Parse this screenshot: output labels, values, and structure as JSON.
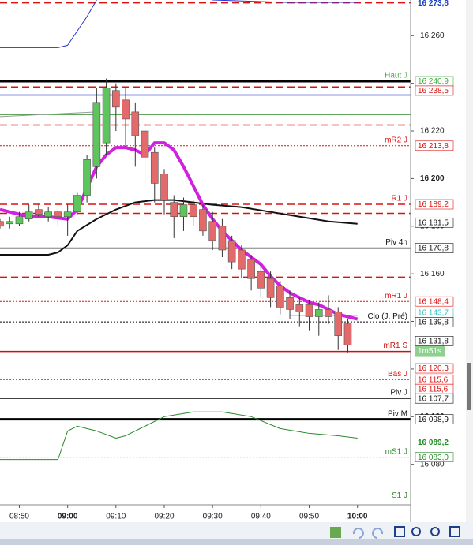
{
  "chart_data": {
    "type": "candlestick",
    "xlim": [
      "08:46",
      "10:11"
    ],
    "ylim": [
      16063,
      16275
    ],
    "xticks": [
      "08:50",
      "09:00",
      "09:10",
      "09:20",
      "09:30",
      "09:40",
      "09:50",
      "10:00"
    ],
    "yticks": [
      {
        "value": 16080,
        "label": "16 080"
      },
      {
        "value": 16100,
        "label": "16 100"
      },
      {
        "value": 16120,
        "label": "16 120"
      },
      {
        "value": 16140,
        "label": "16 140"
      },
      {
        "value": 16160,
        "label": "16 160"
      },
      {
        "value": 16180,
        "label": "16 180"
      },
      {
        "value": 16200,
        "label": "16 200"
      },
      {
        "value": 16220,
        "label": "16 220"
      },
      {
        "value": 16240,
        "label": "16 240"
      },
      {
        "value": 16260,
        "label": "16 260"
      }
    ],
    "up_color": "#5ec45e",
    "down_color": "#e26a6a",
    "candles": {
      "x": [
        "08:46",
        "08:48",
        "08:50",
        "08:52",
        "08:54",
        "08:56",
        "08:58",
        "09:00",
        "09:02",
        "09:04",
        "09:06",
        "09:08",
        "09:10",
        "09:12",
        "09:14",
        "09:16",
        "09:18",
        "09:20",
        "09:22",
        "09:24",
        "09:26",
        "09:28",
        "09:30",
        "09:32",
        "09:34",
        "09:36",
        "09:38",
        "09:40",
        "09:42",
        "09:44",
        "09:46",
        "09:48",
        "09:50",
        "09:52",
        "09:54",
        "09:56",
        "09:58"
      ],
      "open": [
        16182,
        16181,
        16181,
        16183,
        16187,
        16184,
        16186,
        16184,
        16186,
        16193,
        16205,
        16215,
        16237,
        16233,
        16228,
        16220,
        16211,
        16202,
        16190,
        16184,
        16189,
        16187,
        16182,
        16180,
        16174,
        16170,
        16166,
        16161,
        16158,
        16155,
        16150,
        16147,
        16147,
        16142,
        16145,
        16144,
        16139
      ],
      "high": [
        16183,
        16184,
        16186,
        16189,
        16189,
        16188,
        16187,
        16189,
        16194,
        16210,
        16238,
        16242,
        16240,
        16238,
        16232,
        16224,
        16213,
        16204,
        16193,
        16192,
        16191,
        16189,
        16186,
        16183,
        16176,
        16172,
        16168,
        16164,
        16161,
        16157,
        16153,
        16150,
        16149,
        16148,
        16151,
        16146,
        16141
      ],
      "low": [
        16179,
        16179,
        16180,
        16182,
        16184,
        16182,
        16180,
        16176,
        16185,
        16190,
        16200,
        16210,
        16220,
        16213,
        16205,
        16198,
        16190,
        16185,
        16175,
        16178,
        16180,
        16176,
        16170,
        16167,
        16162,
        16158,
        16153,
        16150,
        16146,
        16143,
        16141,
        16138,
        16136,
        16134,
        16139,
        16128,
        16127
      ],
      "close": [
        16180,
        16182,
        16184,
        16186,
        16185,
        16186,
        16184,
        16186,
        16193,
        16208,
        16232,
        16238,
        16230,
        16225,
        16218,
        16209,
        16198,
        16191,
        16184,
        16189,
        16184,
        16178,
        16174,
        16170,
        16165,
        16162,
        16158,
        16154,
        16150,
        16146,
        16145,
        16144,
        16142,
        16145,
        16142,
        16134,
        16130
      ]
    },
    "overlays": [
      {
        "color": "#2233cc",
        "width": 1,
        "x": [
          "08:46",
          "08:58",
          "09:00",
          "09:02",
          "09:04",
          "09:06",
          "09:08",
          "09:30",
          "09:45",
          "10:00"
        ],
        "values": [
          16255,
          16255,
          16256,
          16262,
          16268,
          16275,
          null,
          16275,
          16274,
          16274
        ]
      },
      {
        "color": "#999999",
        "width": 1,
        "x": [
          "08:46",
          "09:06"
        ],
        "values": [
          16226,
          16228
        ]
      },
      {
        "color": "#33dddd",
        "width": 1,
        "x": [
          "09:46",
          "10:00"
        ],
        "values": [
          16142.5,
          16142.5
        ]
      },
      {
        "color": "#2a8a2a",
        "width": 1,
        "x": [
          "08:46",
          "08:58",
          "09:00",
          "09:02",
          "09:06",
          "09:10",
          "09:12",
          "09:16",
          "09:20",
          "09:26",
          "09:32",
          "09:38",
          "09:44",
          "09:50",
          "09:56",
          "10:00"
        ],
        "values": [
          16082,
          16082,
          16094,
          16096,
          16094,
          16091,
          16092,
          16096,
          16100,
          16102,
          16102,
          16100,
          16095,
          16093,
          16092,
          16091
        ]
      },
      {
        "color": "#111111",
        "width": 2,
        "x": [
          "08:46",
          "08:56",
          "08:58",
          "09:00",
          "09:02",
          "09:06",
          "09:10",
          "09:14",
          "09:18",
          "09:22",
          "09:26",
          "09:30",
          "09:36",
          "09:42",
          "09:48",
          "09:54",
          "10:00"
        ],
        "values": [
          16168,
          16168,
          16169,
          16172,
          16178,
          16183,
          16187,
          16190,
          16191,
          16191,
          16190,
          16189,
          16188,
          16186,
          16184,
          16182,
          16181
        ]
      },
      {
        "color": "#d020e0",
        "width": 4,
        "x": [
          "08:46",
          "08:48",
          "08:52",
          "08:56",
          "09:00",
          "09:02",
          "09:04",
          "09:06",
          "09:08",
          "09:10",
          "09:12",
          "09:14",
          "09:16",
          "09:18",
          "09:20",
          "09:22",
          "09:24",
          "09:26",
          "09:28",
          "09:30",
          "09:32",
          "09:34",
          "09:36",
          "09:38",
          "09:40",
          "09:42",
          "09:44",
          "09:46",
          "09:48",
          "09:50",
          "09:52",
          "09:54",
          "09:56",
          "09:58",
          "10:00"
        ],
        "values": [
          16187,
          16186,
          16184,
          16184,
          16183,
          16187,
          16196,
          16205,
          16210,
          16213,
          16213,
          16212,
          16210,
          16215,
          16215,
          16212,
          16205,
          16197,
          16189,
          16183,
          16178,
          16174,
          16170,
          16167,
          16164,
          16159,
          16155,
          16152,
          16150,
          16148,
          16147,
          16145,
          16143,
          16142,
          16141
        ]
      }
    ],
    "levels": [
      {
        "value": 16273.8,
        "value_label": "16 273,8",
        "color": "#dd1111",
        "style": "dashed",
        "tag_color": "#1a3fbf",
        "big": true
      },
      {
        "name": "Haut J",
        "value": 16240.9,
        "value_label": "16 240,9",
        "color": "#000000",
        "style": "thick",
        "tag_color": "#44aa44"
      },
      {
        "value": 16238.5,
        "value_label": "16 238,5",
        "color": "#dd1111",
        "style": "dashed",
        "tag_color": "#dd1111"
      },
      {
        "value": 16235.1,
        "color": "#1a2fbf",
        "style": "solid"
      },
      {
        "value": 16226.9,
        "color": "#2a8a2a",
        "style": "thin"
      },
      {
        "value": 16222.5,
        "color": "#dd1111",
        "style": "dashed"
      },
      {
        "name": "mR2 J",
        "value": 16213.8,
        "value_label": "16 213,8",
        "color": "#dd1111",
        "style": "dotted",
        "tag_color": "#dd1111"
      },
      {
        "name": "R1 J",
        "value": 16189.2,
        "value_label": "16 189,2",
        "color": "#dd1111",
        "style": "dashed",
        "tag_color": "#dd1111"
      },
      {
        "value": 16185.4,
        "color": "#dd1111",
        "style": "dashed"
      },
      {
        "value": 16181.5,
        "value_label": "16 181,5",
        "color": "#111111",
        "style": "none",
        "tag_color": "#111111"
      },
      {
        "name": "Piv 4h",
        "value": 16170.8,
        "value_label": "16 170,8",
        "color": "#000000",
        "style": "solid",
        "tag_color": "#111111"
      },
      {
        "value": 16158.6,
        "color": "#dd1111",
        "style": "dashed"
      },
      {
        "name": "mR1 J",
        "value": 16148.4,
        "value_label": "16 148,4",
        "color": "#dd1111",
        "style": "dotted",
        "tag_color": "#dd1111"
      },
      {
        "value": 16143.7,
        "value_label": "16 143,7",
        "color": "#33dddd",
        "style": "none",
        "tag_color": "#33bbbb"
      },
      {
        "name": "Clo (J, Pré)",
        "value": 16139.8,
        "value_label": "16 139,8",
        "color": "#000000",
        "style": "dotted",
        "tag_color": "#111111"
      },
      {
        "value": 16131.8,
        "value_label": "16 131,8",
        "color": "#111111",
        "style": "none",
        "tag_color": "#111111"
      },
      {
        "name": "mR1 S",
        "value": 16127.4,
        "color": "#cc1111",
        "style": "solid"
      },
      {
        "value": 16120.3,
        "value_label": "16 120,3",
        "color": "#dd1111",
        "style": "none",
        "tag_color": "#dd1111"
      },
      {
        "name": "Bas J",
        "value": 16115.6,
        "value_label": "16 115,6",
        "color": "#dd1111",
        "style": "dotted",
        "tag_color": "#dd1111"
      },
      {
        "value": 16115.6,
        "value_label": "16 115,6",
        "color": "#dd1111",
        "style": "none",
        "tag_color": "#dd1111"
      },
      {
        "name": "Piv J",
        "value": 16107.7,
        "value_label": "16 107,7",
        "color": "#000000",
        "style": "solid",
        "tag_color": "#111111"
      },
      {
        "name": "Piv M",
        "value": 16098.9,
        "value_label": "16 098,9",
        "color": "#000000",
        "style": "thick",
        "tag_color": "#111111"
      },
      {
        "value": 16089.2,
        "value_label": "16 089,2",
        "color": "#2a8a2a",
        "style": "none",
        "tag_color": "#1f8a1f",
        "big": true
      },
      {
        "name": "mS1 J",
        "value": 16083.0,
        "value_label": "16 083,0",
        "color": "#2a8a2a",
        "style": "dotted",
        "tag_color": "#2a8a2a"
      },
      {
        "name": "S1 J",
        "value": 16064.5,
        "color": "#2a8a2a",
        "style": "none"
      }
    ],
    "timer": "1m51s"
  }
}
